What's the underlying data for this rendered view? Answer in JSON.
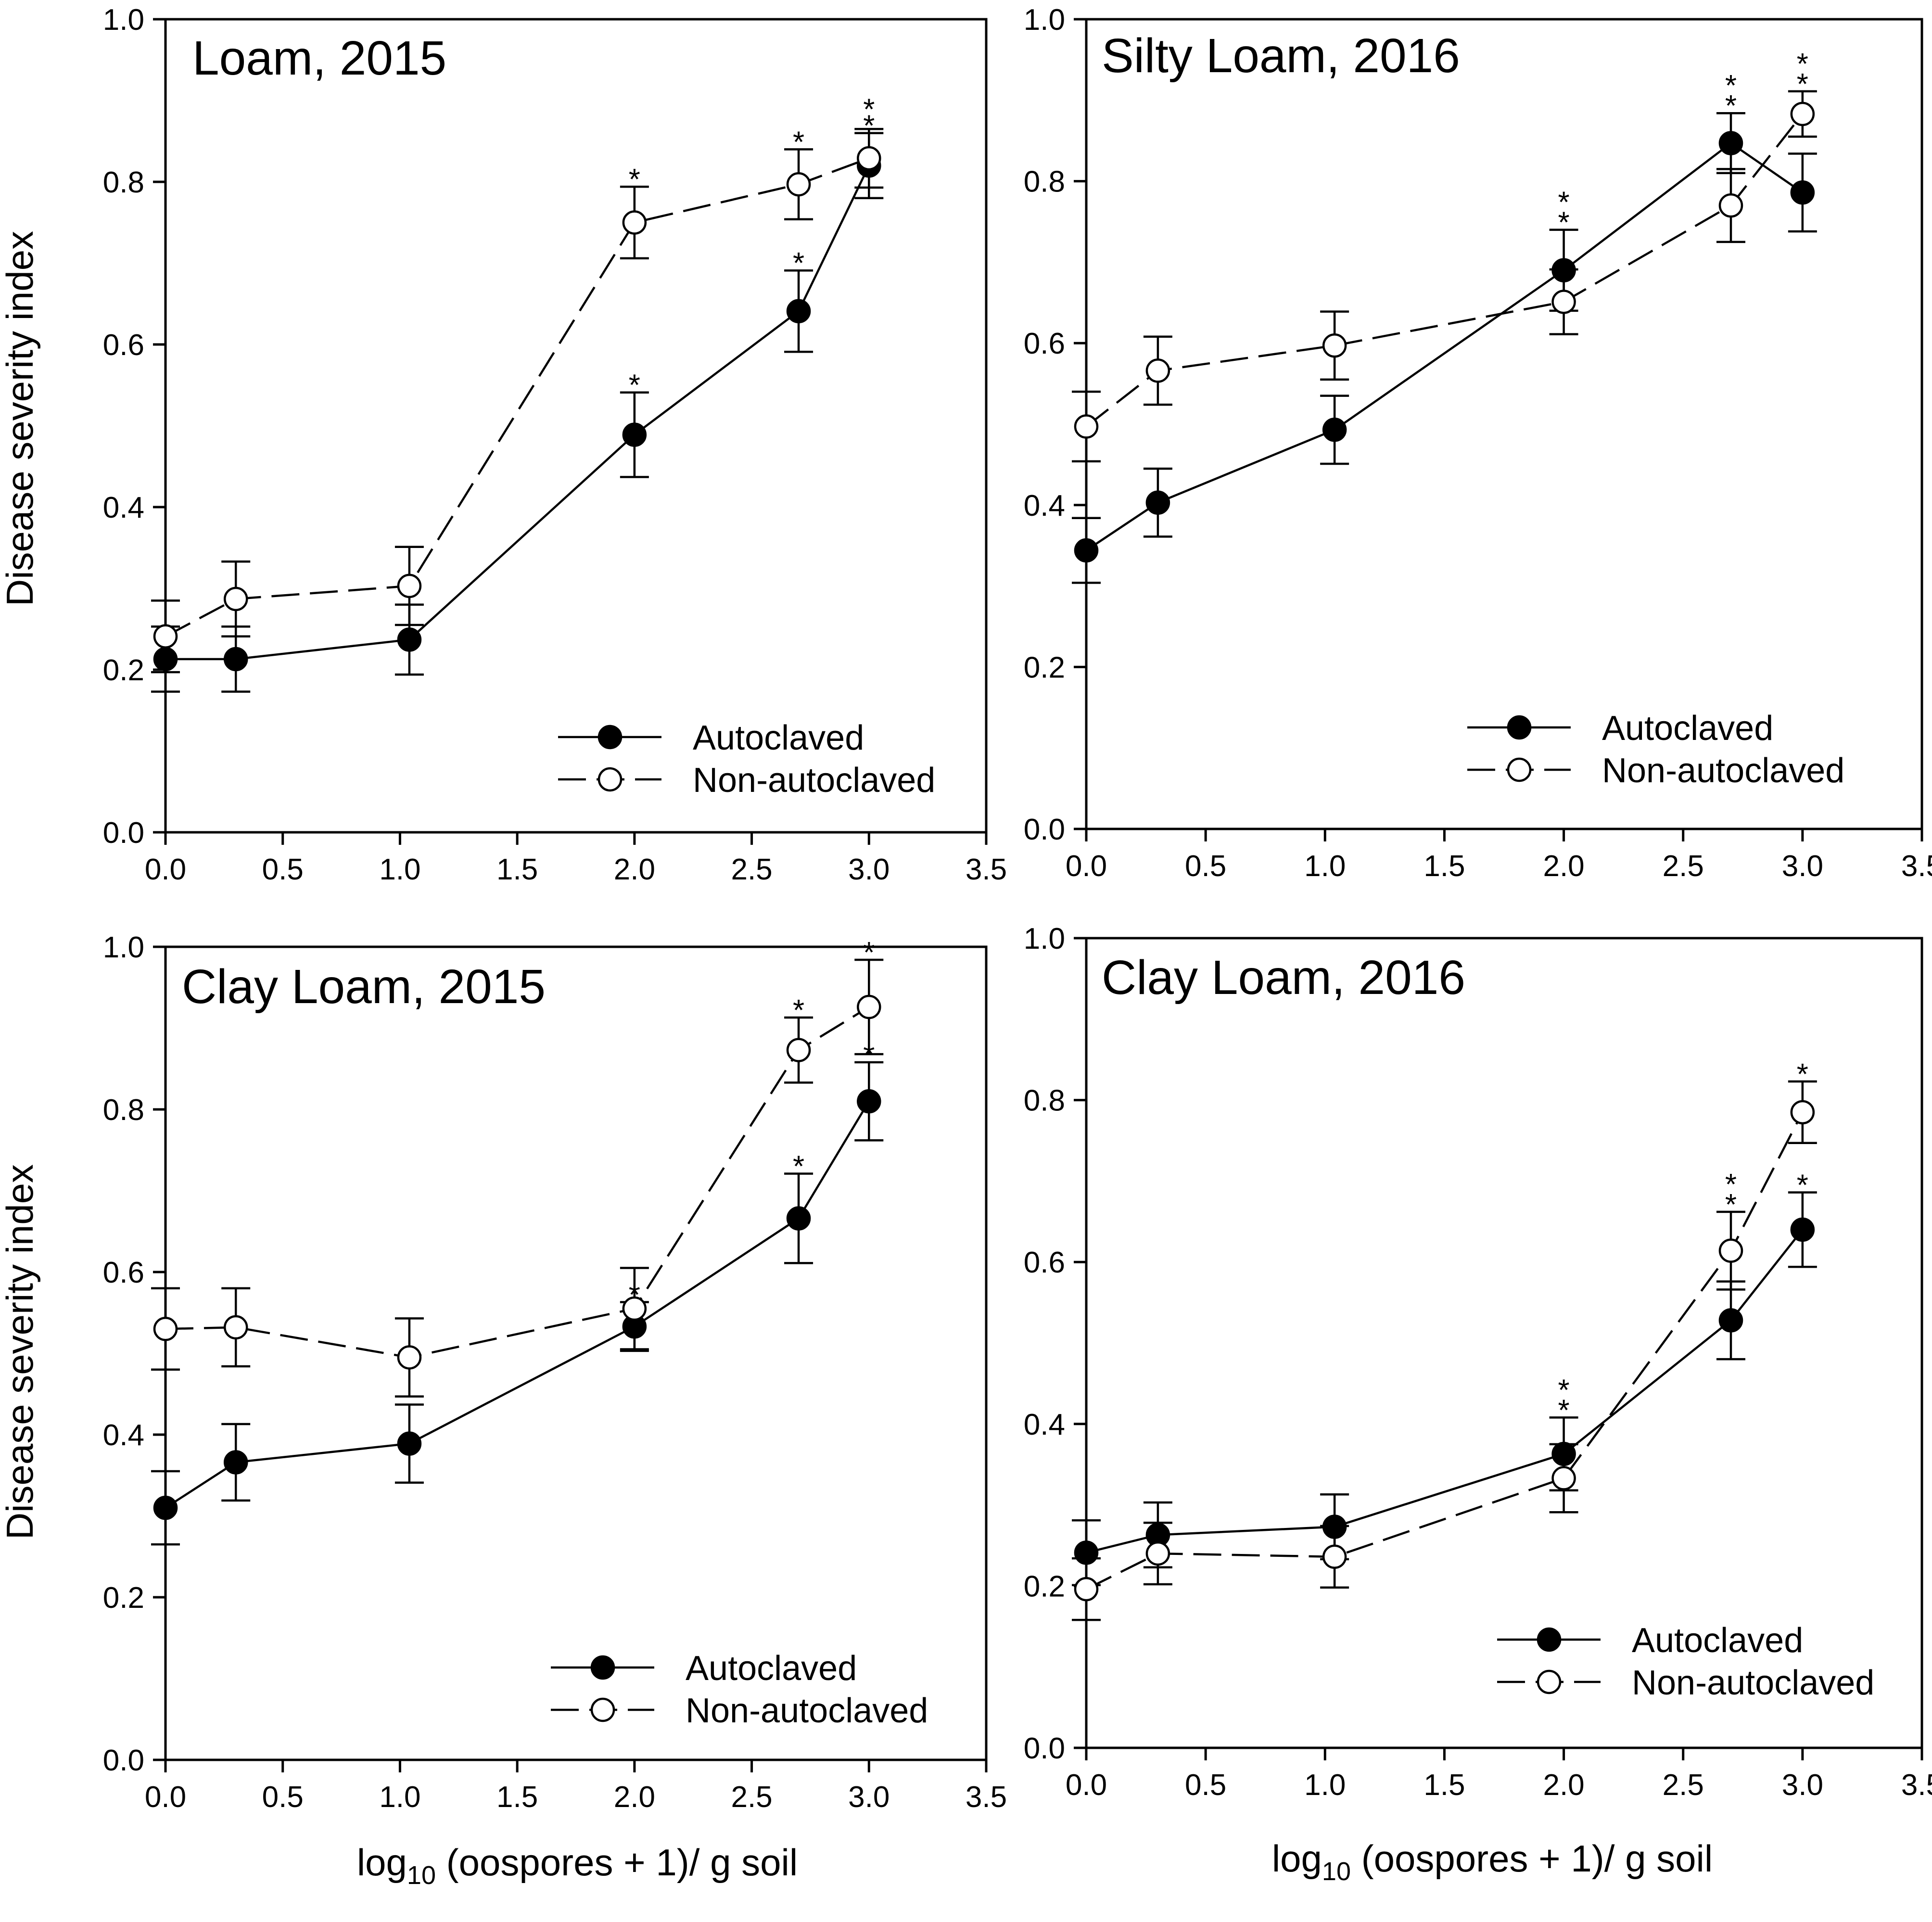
{
  "y_axis_label": "Disease severity index",
  "x_axis_label_parts": {
    "prefix": "log",
    "subscript": "10",
    "suffix": " (oospores + 1)/ g soil"
  },
  "chart_data": [
    {
      "type": "line",
      "title": "Loam, 2015",
      "xlim": [
        0,
        3.5
      ],
      "ylim": [
        0,
        1.0
      ],
      "xticks": [
        "0.0",
        "0.5",
        "1.0",
        "1.5",
        "2.0",
        "2.5",
        "3.0",
        "3.5"
      ],
      "yticks": [
        "0.0",
        "0.2",
        "0.4",
        "0.6",
        "0.8",
        "1.0"
      ],
      "x": [
        0,
        0.3,
        1.04,
        2,
        2.7,
        3
      ],
      "series": [
        {
          "name": "Autoclaved",
          "marker": "filled",
          "line": "solid",
          "values": [
            0.213,
            0.213,
            0.237,
            0.489,
            0.641,
            0.82
          ],
          "errors": [
            0.04,
            0.04,
            0.043,
            0.052,
            0.05,
            0.04
          ],
          "stars": [
            0,
            0,
            0,
            1,
            1,
            1
          ]
        },
        {
          "name": "Non-autoclaved",
          "marker": "open",
          "line": "dashed",
          "values": [
            0.241,
            0.287,
            0.303,
            0.75,
            0.797,
            0.829
          ],
          "errors": [
            0.044,
            0.046,
            0.048,
            0.044,
            0.043,
            0.036
          ],
          "stars": [
            0,
            0,
            0,
            1,
            1,
            1
          ]
        }
      ],
      "legend": "bottom-right"
    },
    {
      "type": "line",
      "title": "Silty Loam, 2016",
      "xlim": [
        0,
        3.5
      ],
      "ylim": [
        0,
        1.0
      ],
      "xticks": [
        "0.0",
        "0.5",
        "1.0",
        "1.5",
        "2.0",
        "2.5",
        "3.0",
        "3.5"
      ],
      "yticks": [
        "0.0",
        "0.2",
        "0.4",
        "0.6",
        "0.8",
        "1.0"
      ],
      "x": [
        0,
        0.3,
        1.04,
        2,
        2.7,
        3
      ],
      "series": [
        {
          "name": "Autoclaved",
          "marker": "filled",
          "line": "solid",
          "values": [
            0.344,
            0.403,
            0.493,
            0.69,
            0.847,
            0.786
          ],
          "errors": [
            0.04,
            0.042,
            0.042,
            0.05,
            0.037,
            0.048
          ],
          "stars": [
            0,
            0,
            0,
            2,
            2,
            0
          ]
        },
        {
          "name": "Non-autoclaved",
          "marker": "open",
          "line": "dashed",
          "values": [
            0.497,
            0.566,
            0.597,
            0.651,
            0.77,
            0.883
          ],
          "errors": [
            0.043,
            0.042,
            0.042,
            0.04,
            0.045,
            0.028
          ],
          "stars": [
            0,
            0,
            0,
            0,
            0,
            2
          ]
        }
      ],
      "legend": "bottom-right"
    },
    {
      "type": "line",
      "title": "Clay Loam, 2015",
      "xlim": [
        0,
        3.5
      ],
      "ylim": [
        0,
        1.0
      ],
      "xticks": [
        "0.0",
        "0.5",
        "1.0",
        "1.5",
        "2.0",
        "2.5",
        "3.0",
        "3.5"
      ],
      "yticks": [
        "0.0",
        "0.2",
        "0.4",
        "0.6",
        "0.8",
        "1.0"
      ],
      "x": [
        0,
        0.3,
        1.04,
        2,
        2.7,
        3
      ],
      "series": [
        {
          "name": "Autoclaved",
          "marker": "filled",
          "line": "solid",
          "values": [
            0.31,
            0.366,
            0.389,
            0.533,
            0.666,
            0.81
          ],
          "errors": [
            0.045,
            0.047,
            0.048,
            0.03,
            0.055,
            0.048
          ],
          "stars": [
            0,
            0,
            0,
            1,
            1,
            1
          ]
        },
        {
          "name": "Non-autoclaved",
          "marker": "open",
          "line": "dashed",
          "values": [
            0.53,
            0.532,
            0.495,
            0.555,
            0.873,
            0.926
          ],
          "errors": [
            0.05,
            0.048,
            0.048,
            0.05,
            0.04,
            0.058
          ],
          "stars": [
            0,
            0,
            0,
            0,
            1,
            1
          ]
        }
      ],
      "legend": "bottom-right"
    },
    {
      "type": "line",
      "title": "Clay Loam, 2016",
      "xlim": [
        0,
        3.5
      ],
      "ylim": [
        0,
        1.0
      ],
      "xticks": [
        "0.0",
        "0.5",
        "1.0",
        "1.5",
        "2.0",
        "2.5",
        "3.0",
        "3.5"
      ],
      "yticks": [
        "0.0",
        "0.2",
        "0.4",
        "0.6",
        "0.8",
        "1.0"
      ],
      "x": [
        0,
        0.3,
        1.04,
        2,
        2.7,
        3
      ],
      "series": [
        {
          "name": "Autoclaved",
          "marker": "filled",
          "line": "solid",
          "values": [
            0.241,
            0.263,
            0.273,
            0.363,
            0.528,
            0.64
          ],
          "errors": [
            0.04,
            0.04,
            0.04,
            0.045,
            0.048,
            0.046
          ],
          "stars": [
            0,
            0,
            0,
            2,
            0,
            1
          ]
        },
        {
          "name": "Non-autoclaved",
          "marker": "open",
          "line": "dashed",
          "values": [
            0.196,
            0.24,
            0.236,
            0.333,
            0.614,
            0.785
          ],
          "errors": [
            0.038,
            0.038,
            0.038,
            0.042,
            0.048,
            0.038
          ],
          "stars": [
            0,
            0,
            0,
            0,
            2,
            1
          ]
        }
      ],
      "legend": "bottom-right"
    }
  ]
}
